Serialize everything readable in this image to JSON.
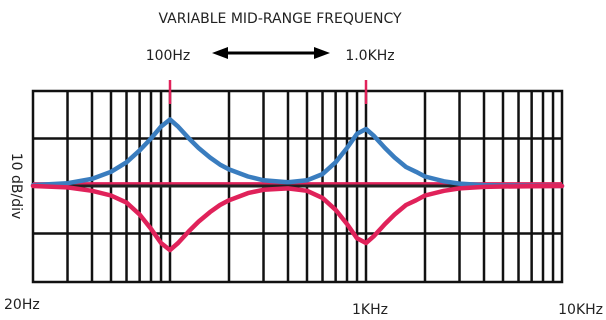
{
  "chart_data": {
    "type": "line",
    "title": "VARIABLE MID-RANGE FREQUENCY",
    "xlabel": "",
    "ylabel": "10 dB/div",
    "x_scale": "log",
    "xlim": [
      20,
      10000
    ],
    "ylim": [
      -20,
      20
    ],
    "grid": true,
    "x_tick_labels": [
      "20Hz",
      "1KHz",
      "10KHz"
    ],
    "x_tick_values": [
      20,
      1000,
      10000
    ],
    "markers": [
      {
        "label": "100Hz",
        "x": 100
      },
      {
        "label": "1.0KHz",
        "x": 1000
      }
    ],
    "range_indicator": {
      "from": 100,
      "to": 1000,
      "style": "double-arrow"
    },
    "series": [
      {
        "color": "#3a7dbf",
        "role": "boost",
        "x": [
          20,
          30,
          40,
          50,
          60,
          70,
          80,
          90,
          100,
          110,
          125,
          140,
          160,
          180,
          200,
          250,
          300,
          400,
          500,
          600,
          700,
          800,
          900,
          1000,
          1100,
          1250,
          1400,
          1600,
          1800,
          2000,
          2500,
          3000,
          4000,
          5000,
          7000,
          10000
        ],
        "y": [
          0.2,
          0.6,
          1.5,
          3,
          5,
          7.5,
          10,
          12.5,
          14,
          12.5,
          10,
          8,
          6,
          4.5,
          3.5,
          2,
          1.2,
          0.8,
          1.2,
          2.5,
          5,
          8,
          11,
          12,
          10.5,
          8,
          6,
          4,
          3,
          2,
          1,
          0.5,
          0.2,
          0.1,
          0.05,
          0
        ]
      },
      {
        "color": "#e0225a",
        "role": "cut",
        "x": [
          20,
          30,
          40,
          50,
          60,
          70,
          80,
          90,
          100,
          110,
          125,
          140,
          160,
          180,
          200,
          250,
          300,
          400,
          500,
          600,
          700,
          800,
          900,
          1000,
          1100,
          1250,
          1400,
          1600,
          1800,
          2000,
          2500,
          3000,
          4000,
          5000,
          7000,
          10000
        ],
        "y": [
          0,
          -0.3,
          -1,
          -2,
          -3.5,
          -6,
          -9,
          -12,
          -13.5,
          -12,
          -9.5,
          -7.5,
          -5.5,
          -4,
          -3,
          -1.5,
          -0.8,
          -0.5,
          -1,
          -2.5,
          -5,
          -8,
          -11,
          -12,
          -10.5,
          -8,
          -6,
          -4,
          -3,
          -2,
          -1,
          -0.5,
          -0.2,
          -0.1,
          -0.05,
          0
        ]
      }
    ],
    "flat_lines": [
      {
        "color": "#e0225a",
        "y": 0.5
      },
      {
        "color": "#222222",
        "y": 0
      }
    ]
  },
  "colors": {
    "boost": "#3a7dbf",
    "cut": "#e0225a",
    "grid": "#111111",
    "text": "#222222"
  }
}
